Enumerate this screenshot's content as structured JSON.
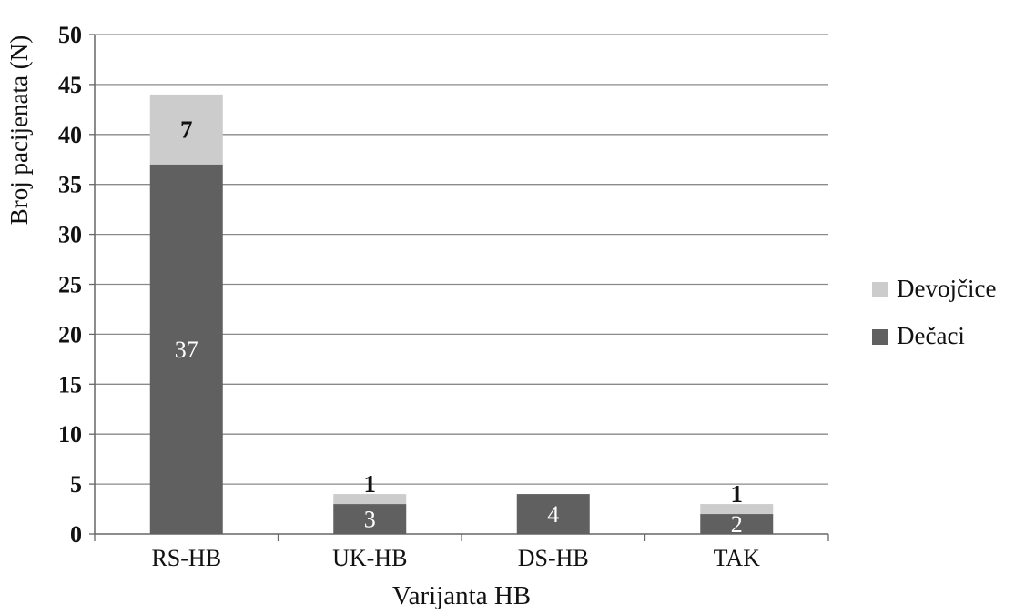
{
  "chart_data": {
    "type": "bar",
    "stacked": true,
    "categories": [
      "RS-HB",
      "UK-HB",
      "DS-HB",
      "TAK"
    ],
    "series": [
      {
        "name": "Dečaci",
        "values": [
          37,
          3,
          4,
          2
        ],
        "labels": [
          "37",
          "3",
          "4",
          "2"
        ],
        "color": "#606060",
        "label_color": "#ffffff"
      },
      {
        "name": "Devojčice",
        "values": [
          7,
          1,
          0,
          1
        ],
        "labels": [
          "7",
          "1",
          "",
          "1"
        ],
        "color": "#cccccc",
        "label_color": "#111111"
      }
    ],
    "xlabel": "Varijanta HB",
    "ylabel": "Broj pacijenata (N)",
    "ylim": [
      0,
      50
    ],
    "yticks": [
      "0",
      "5",
      "10",
      "15",
      "20",
      "25",
      "30",
      "35",
      "40",
      "45",
      "50"
    ],
    "grid": true,
    "legend_position": "right"
  }
}
